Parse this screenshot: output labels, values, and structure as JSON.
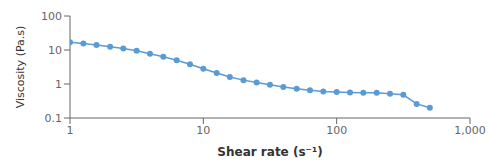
{
  "chart_data": {
    "type": "line",
    "x": [
      1.0,
      1.26,
      1.58,
      2.0,
      2.51,
      3.16,
      3.98,
      5.01,
      6.31,
      7.94,
      10.0,
      12.6,
      15.8,
      20.0,
      25.1,
      31.6,
      39.8,
      50.1,
      63.1,
      79.4,
      100.0,
      125.9,
      158.5,
      199.5,
      251.2,
      316.2,
      398.1,
      500.0
    ],
    "values": [
      17.0,
      15.5,
      14.0,
      12.5,
      11.0,
      9.5,
      7.8,
      6.3,
      5.0,
      3.8,
      2.8,
      2.1,
      1.6,
      1.3,
      1.1,
      0.95,
      0.82,
      0.72,
      0.65,
      0.6,
      0.58,
      0.56,
      0.55,
      0.55,
      0.52,
      0.48,
      0.26,
      0.2
    ],
    "color": "#5b9bd5",
    "marker": "circle",
    "log": true,
    "xlim": [
      1,
      1000
    ],
    "ylim": [
      0.1,
      100
    ],
    "xticks": [
      1,
      10,
      100,
      {
        "value": 1000,
        "label": "1,000"
      }
    ],
    "yticks": [
      0.1,
      1,
      10,
      100
    ],
    "xlabel": "Shear rate (s⁻¹)",
    "ylabel": "Viscosity (Pa.s)",
    "grid": false
  }
}
